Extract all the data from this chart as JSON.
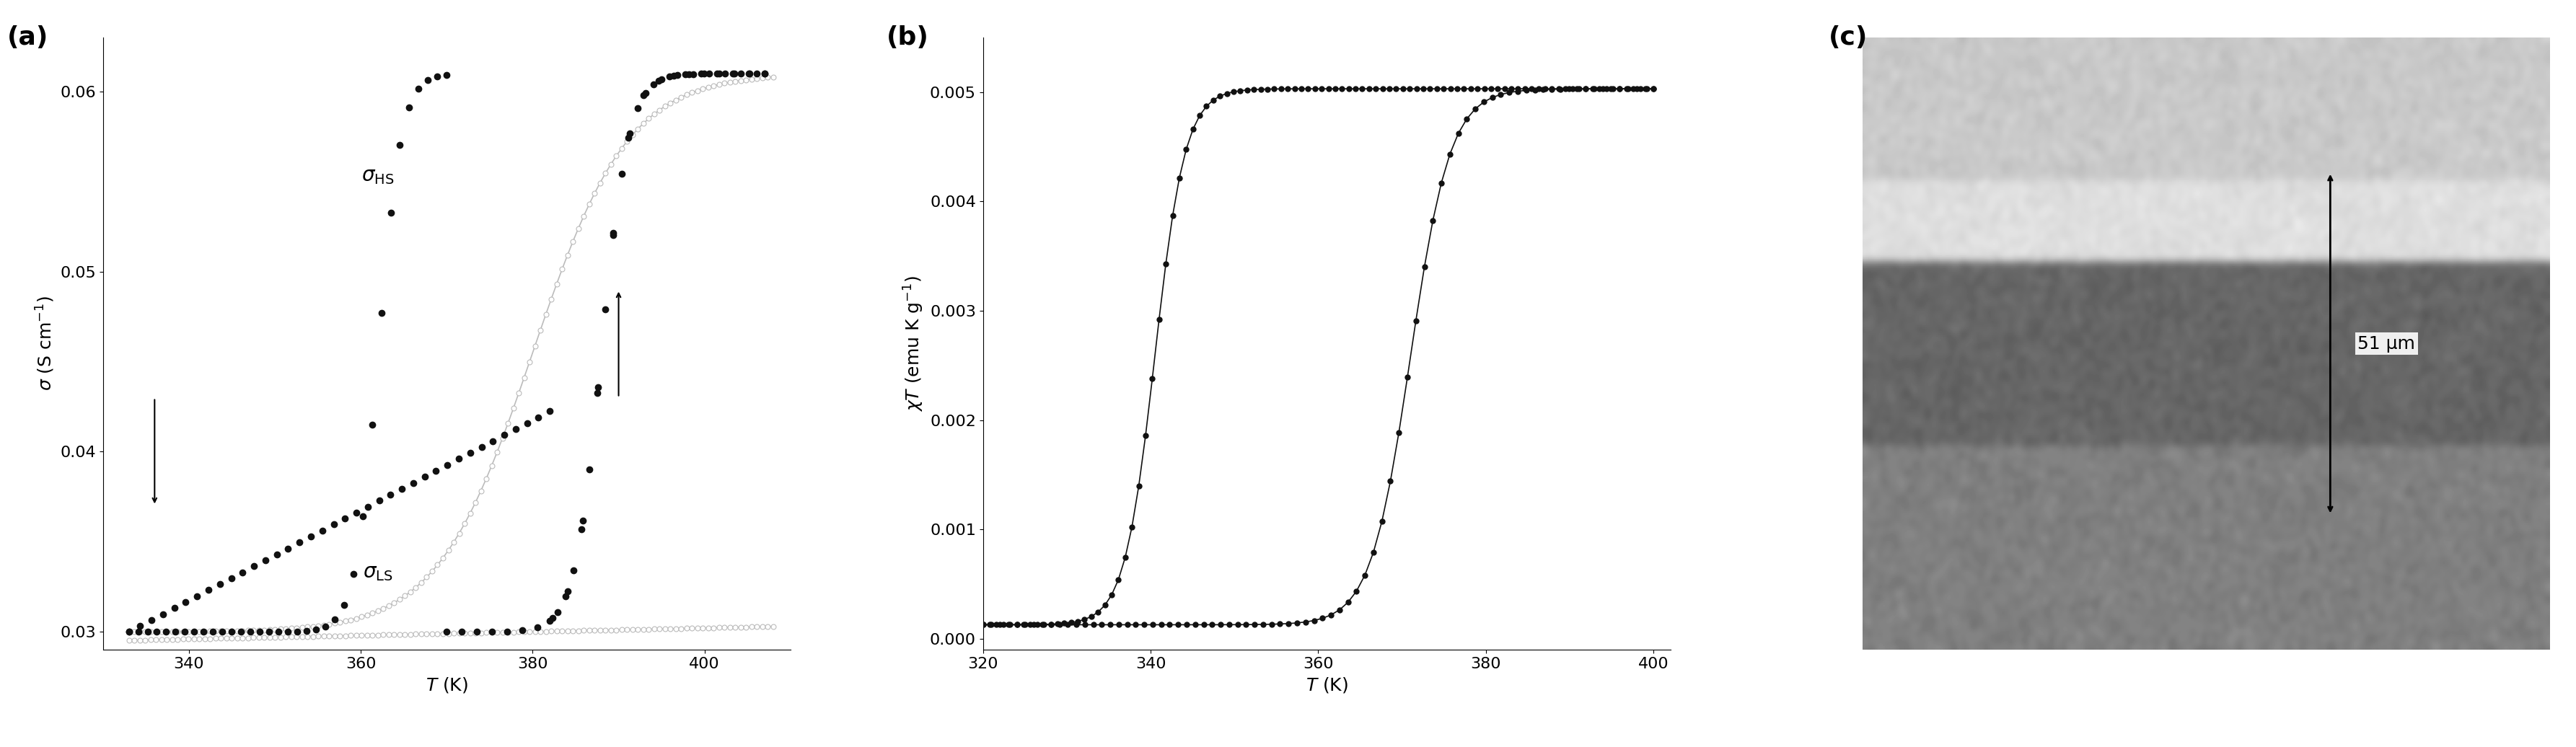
{
  "panel_a": {
    "title": "(a)",
    "xlabel": "T (K)",
    "ylabel": "σ (S cm⁻¹)",
    "xlim": [
      330,
      410
    ],
    "ylim": [
      0.029,
      0.063
    ],
    "xticks": [
      340,
      360,
      380,
      400
    ],
    "yticks": [
      0.03,
      0.04,
      0.05,
      0.06
    ]
  },
  "panel_b": {
    "title": "(b)",
    "xlabel": "T (K)",
    "ylabel": "χT (emu K g⁻¹)",
    "xlim": [
      320,
      402
    ],
    "ylim": [
      -0.0001,
      0.0055
    ],
    "xticks": [
      320,
      340,
      360,
      380,
      400
    ],
    "yticks": [
      0,
      0.001,
      0.002,
      0.003,
      0.004,
      0.005
    ]
  },
  "panel_c": {
    "title": "(c)",
    "annotation": "51 μm"
  },
  "background_color": "#ffffff",
  "dot_color": "#111111",
  "gray_color": "#bbbbbb",
  "line_color": "#333333"
}
